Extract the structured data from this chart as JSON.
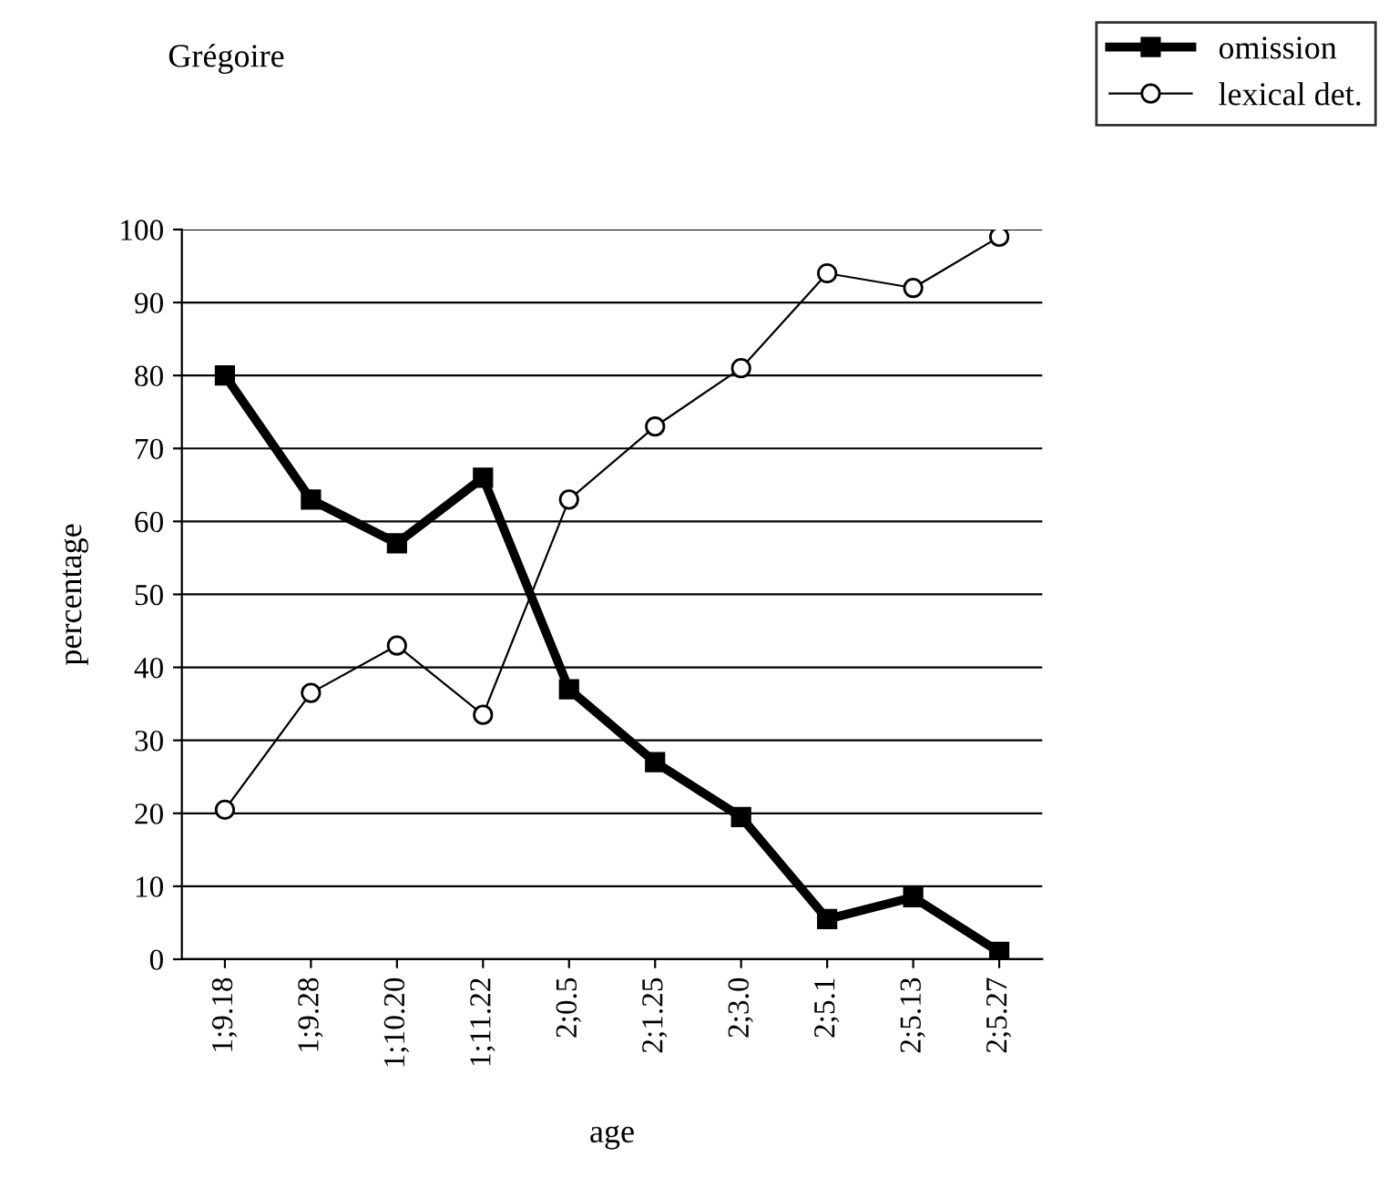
{
  "chart_data": {
    "type": "line",
    "title": "Grégoire",
    "xlabel": "age",
    "ylabel": "percentage",
    "categories": [
      "1;9.18",
      "1;9.28",
      "1;10.20",
      "1;11.22",
      "2;0.5",
      "2;1.25",
      "2;3.0",
      "2;5.1",
      "2;5.13",
      "2;5.27"
    ],
    "series": [
      {
        "name": "omission",
        "color": "#000000",
        "marker": "square",
        "values": [
          80,
          63,
          57,
          66,
          37,
          27,
          19.5,
          5.5,
          8.5,
          1
        ]
      },
      {
        "name": "lexical det.",
        "color": "#000000",
        "marker": "circle",
        "values": [
          20.5,
          36.5,
          43,
          33.5,
          63,
          73,
          81,
          94,
          92,
          99
        ]
      }
    ],
    "ylim": [
      0,
      100
    ],
    "yticks": [
      0,
      10,
      20,
      30,
      40,
      50,
      60,
      70,
      80,
      90,
      100
    ],
    "grid": "y",
    "legend": "top right"
  }
}
